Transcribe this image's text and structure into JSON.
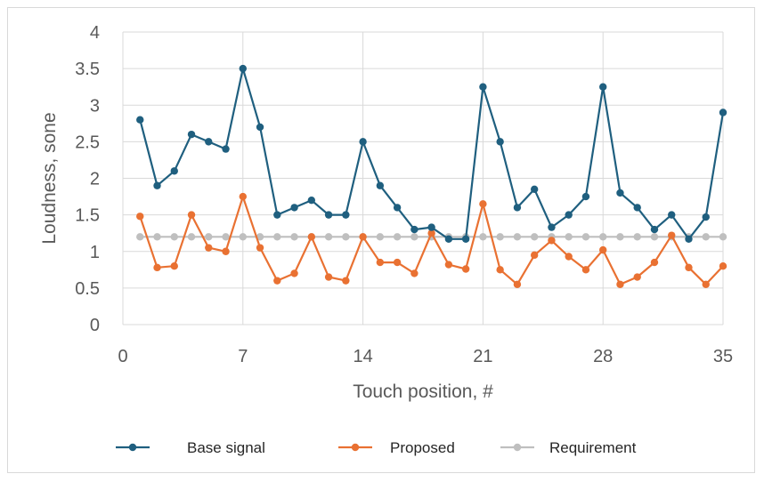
{
  "chart_data": {
    "type": "line",
    "xlabel": "Touch position, #",
    "ylabel": "Loudness, sone",
    "xlim": [
      0,
      35
    ],
    "ylim": [
      0,
      4
    ],
    "xticks": [
      0,
      7,
      14,
      21,
      28,
      35
    ],
    "xtick_labels": [
      "0",
      "7",
      "14",
      "21",
      "28",
      "35"
    ],
    "yticks": [
      0,
      0.5,
      1,
      1.5,
      2,
      2.5,
      3,
      3.5,
      4
    ],
    "ytick_labels": [
      "0",
      "0.5",
      "1",
      "1.5",
      "2",
      "2.5",
      "3",
      "3.5",
      "4"
    ],
    "grid": "horizontal and vertical major",
    "legend_position": "bottom",
    "x": [
      1,
      2,
      3,
      4,
      5,
      6,
      7,
      8,
      9,
      10,
      11,
      12,
      13,
      14,
      15,
      16,
      17,
      18,
      19,
      20,
      21,
      22,
      23,
      24,
      25,
      26,
      27,
      28,
      29,
      30,
      31,
      32,
      33,
      34,
      35
    ],
    "series": [
      {
        "name": "Base signal",
        "color": "#1f5f7f",
        "values": [
          2.8,
          1.9,
          2.1,
          2.6,
          2.5,
          2.4,
          3.5,
          2.7,
          1.5,
          1.6,
          1.7,
          1.5,
          1.5,
          2.5,
          1.9,
          1.6,
          1.3,
          1.33,
          1.17,
          1.17,
          3.25,
          2.5,
          1.6,
          1.85,
          1.33,
          1.5,
          1.75,
          3.25,
          1.8,
          1.6,
          1.3,
          1.5,
          1.17,
          1.47,
          2.9
        ]
      },
      {
        "name": "Proposed",
        "color": "#e97132",
        "values": [
          1.48,
          0.78,
          0.8,
          1.5,
          1.05,
          1.0,
          1.75,
          1.05,
          0.6,
          0.7,
          1.2,
          0.65,
          0.6,
          1.2,
          0.85,
          0.85,
          0.7,
          1.25,
          0.82,
          0.76,
          1.65,
          0.75,
          0.55,
          0.95,
          1.15,
          0.93,
          0.75,
          1.02,
          0.55,
          0.65,
          0.85,
          1.22,
          0.78,
          0.55,
          0.8
        ]
      },
      {
        "name": "Requirement",
        "color": "#bfbfbf",
        "values": [
          1.2,
          1.2,
          1.2,
          1.2,
          1.2,
          1.2,
          1.2,
          1.2,
          1.2,
          1.2,
          1.2,
          1.2,
          1.2,
          1.2,
          1.2,
          1.2,
          1.2,
          1.2,
          1.2,
          1.2,
          1.2,
          1.2,
          1.2,
          1.2,
          1.2,
          1.2,
          1.2,
          1.2,
          1.2,
          1.2,
          1.2,
          1.2,
          1.2,
          1.2,
          1.2
        ]
      }
    ]
  }
}
